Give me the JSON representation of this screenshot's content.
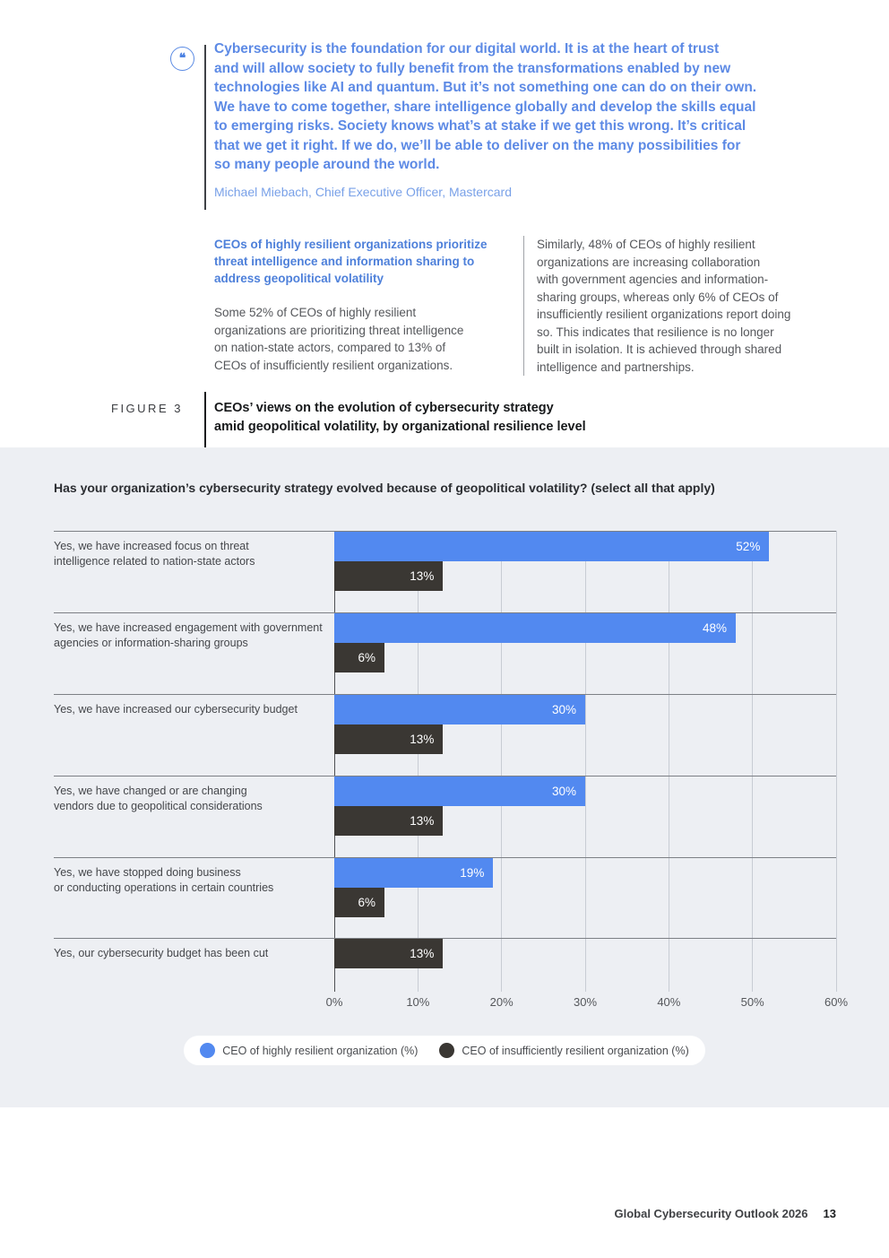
{
  "quote": {
    "icon_glyph": "❝",
    "text": "Cybersecurity is the foundation for our digital world. It is at the heart of trust\nand will allow society to fully benefit from the transformations enabled by new\ntechnologies like AI and quantum. But it’s not something one can do on their own.\nWe have to come together, share intelligence globally and develop the skills equal\nto emerging risks. Society knows what’s at stake if we get this wrong. It’s critical\nthat we get it right. If we do, we’ll be able to deliver on the many possibilities for\nso many people around the world.",
    "attribution": "Michael Miebach, Chief Executive Officer, Mastercard"
  },
  "body": {
    "left_heading": "CEOs of highly resilient organizations prioritize\nthreat intelligence and information sharing to\naddress geopolitical volatility",
    "left_text": "Some 52% of CEOs of highly resilient\norganizations are prioritizing threat intelligence\non nation-state actors, compared to 13% of\nCEOs of insufficiently resilient organizations.",
    "right_text": "Similarly, 48% of CEOs of highly resilient\norganizations are increasing collaboration\nwith government agencies and information-\nsharing groups, whereas only 6% of CEOs of\ninsufficiently resilient organizations report doing\nso. This indicates that resilience is no longer\nbuilt in isolation. It is achieved through shared\nintelligence and partnerships."
  },
  "figure": {
    "label": "FIGURE 3",
    "title": "CEOs’ views on the evolution of cybersecurity strategy\namid geopolitical volatility, by organizational resilience level"
  },
  "chart_data": {
    "type": "bar",
    "orientation": "horizontal",
    "question": "Has your organization’s cybersecurity strategy evolved because of geopolitical volatility? (select all that apply)",
    "categories": [
      "Yes, we have increased focus on threat\nintelligence related to nation-state actors",
      "Yes, we have increased engagement with government\nagencies or information-sharing groups",
      "Yes, we have increased our cybersecurity budget",
      "Yes, we have changed or are changing\nvendors due to geopolitical considerations",
      "Yes, we have stopped doing business\nor conducting operations in certain countries",
      "Yes, our cybersecurity budget has been cut"
    ],
    "series": [
      {
        "name": "CEO of highly resilient organization (%)",
        "color": "#5289f0",
        "values": [
          52,
          48,
          30,
          30,
          19,
          null
        ]
      },
      {
        "name": "CEO of insufficiently resilient organization (%)",
        "color": "#3a3733",
        "values": [
          13,
          6,
          13,
          13,
          6,
          13
        ]
      }
    ],
    "x_ticks": [
      "0%",
      "10%",
      "20%",
      "30%",
      "40%",
      "50%",
      "60%"
    ],
    "xlim": [
      0,
      60
    ],
    "grid": true,
    "legend_position": "bottom",
    "background": "#edeff3"
  },
  "footer": {
    "text": "Global Cybersecurity Outlook 2026",
    "page": "13"
  }
}
